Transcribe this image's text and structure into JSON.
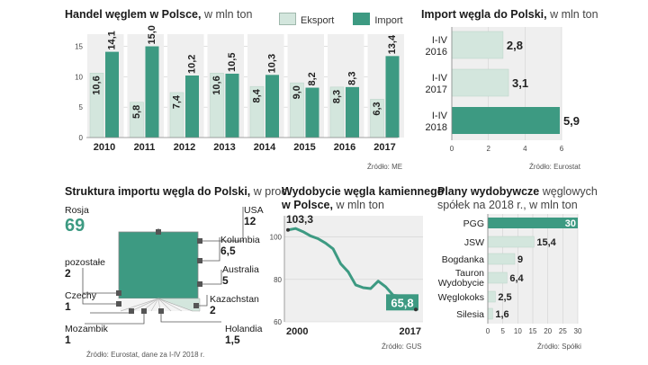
{
  "colors": {
    "export": "#d3e6dd",
    "import": "#3d9a82",
    "panel_bg": "#efefef",
    "highlight": "#3d9a82",
    "light": "#d3e6dd"
  },
  "trade": {
    "title": "Handel węglem w Polsce,",
    "unit": "w mln ton",
    "source": "Źródło: ME",
    "legend": {
      "export": "Eksport",
      "import": "Import"
    },
    "chart_data": {
      "type": "bar",
      "title": "Handel węglem w Polsce, w mln ton",
      "categories": [
        "2010",
        "2011",
        "2012",
        "2013",
        "2014",
        "2015",
        "2016",
        "2017"
      ],
      "series": [
        {
          "name": "Eksport",
          "values": [
            10.6,
            5.8,
            7.4,
            10.6,
            8.4,
            9.0,
            8.3,
            6.3
          ],
          "labels": [
            "10,6",
            "5,8",
            "7,4",
            "10,6",
            "8,4",
            "9,0",
            "8,3",
            "6,3"
          ]
        },
        {
          "name": "Import",
          "values": [
            14.1,
            15.0,
            10.2,
            10.5,
            10.3,
            8.2,
            8.3,
            13.4
          ],
          "labels": [
            "14,1",
            "15,0",
            "10,2",
            "10,5",
            "10,3",
            "8,2",
            "8,3",
            "13,4"
          ]
        }
      ],
      "yticks": [
        "0",
        "5",
        "10",
        "15"
      ],
      "ylim": [
        0,
        17
      ]
    }
  },
  "imports_ytd": {
    "title": "Import węgla do Polski,",
    "unit": "w mln ton",
    "source": "Źródło: Eurostat",
    "chart_data": {
      "type": "bar",
      "orientation": "horizontal",
      "categories": [
        [
          "I-IV",
          "2016"
        ],
        [
          "I-IV",
          "2017"
        ],
        [
          "I-IV",
          "2018"
        ]
      ],
      "values": [
        2.8,
        3.1,
        5.9
      ],
      "labels": [
        "2,8",
        "3,1",
        "5,9"
      ],
      "xticks": [
        "0",
        "2",
        "4",
        "6"
      ],
      "xlim": [
        0,
        6
      ]
    }
  },
  "structure": {
    "title": "Struktura importu węgla do Polski,",
    "unit": "w proc.",
    "source": "Źródło: Eurostat, dane za I-IV 2018 r.",
    "chart_data": {
      "type": "pie",
      "segments": [
        {
          "name": "Rosja",
          "value": "69"
        },
        {
          "name": "USA",
          "value": "12"
        },
        {
          "name": "Kolumbia",
          "value": "6,5"
        },
        {
          "name": "Australia",
          "value": "5"
        },
        {
          "name": "Kazachstan",
          "value": "2"
        },
        {
          "name": "Holandia",
          "value": "1,5"
        },
        {
          "name": "Mozambik",
          "value": "1"
        },
        {
          "name": "Czechy",
          "value": "1"
        },
        {
          "name": "pozostałe",
          "value": "2"
        }
      ]
    }
  },
  "mining": {
    "title_line1": "Wydobycie węgla kamiennego",
    "title_line2": "w Polsce,",
    "unit": "w mln ton",
    "source": "Źródło: GUS",
    "chart_data": {
      "type": "line",
      "x": [
        2000,
        2001,
        2002,
        2003,
        2004,
        2005,
        2006,
        2007,
        2008,
        2009,
        2010,
        2011,
        2012,
        2013,
        2014,
        2015,
        2016,
        2017
      ],
      "y": [
        103.3,
        104.0,
        102.5,
        100.5,
        99.2,
        97.1,
        94.4,
        87.4,
        83.6,
        77.4,
        76.1,
        75.7,
        79.2,
        76.5,
        72.5,
        72.2,
        70.4,
        65.8
      ],
      "start_label": "103,3",
      "end_label": "65,8",
      "xlabels": [
        "2000",
        "2017"
      ],
      "yticks": [
        "60",
        "80",
        "100"
      ],
      "ylim": [
        60,
        110
      ]
    }
  },
  "plans": {
    "title_line1": "Plany wydobywcze",
    "title_unit1": "węglowych",
    "title_line2": "spółek na 2018 r., w mln ton",
    "source": "Źródło: Spółki",
    "chart_data": {
      "type": "bar",
      "orientation": "horizontal",
      "categories": [
        [
          "PGG"
        ],
        [
          "JSW"
        ],
        [
          "Bogdanka"
        ],
        [
          "Tauron",
          "Wydobycie"
        ],
        [
          "Węglokoks"
        ],
        [
          "Silesia"
        ]
      ],
      "values": [
        30,
        15.4,
        9,
        6.4,
        2.5,
        1.6
      ],
      "labels": [
        "30",
        "15,4",
        "9",
        "6,4",
        "2,5",
        "1,6"
      ],
      "xticks": [
        "0",
        "5",
        "10",
        "15",
        "20",
        "25",
        "30"
      ],
      "xlim": [
        0,
        30
      ]
    }
  }
}
